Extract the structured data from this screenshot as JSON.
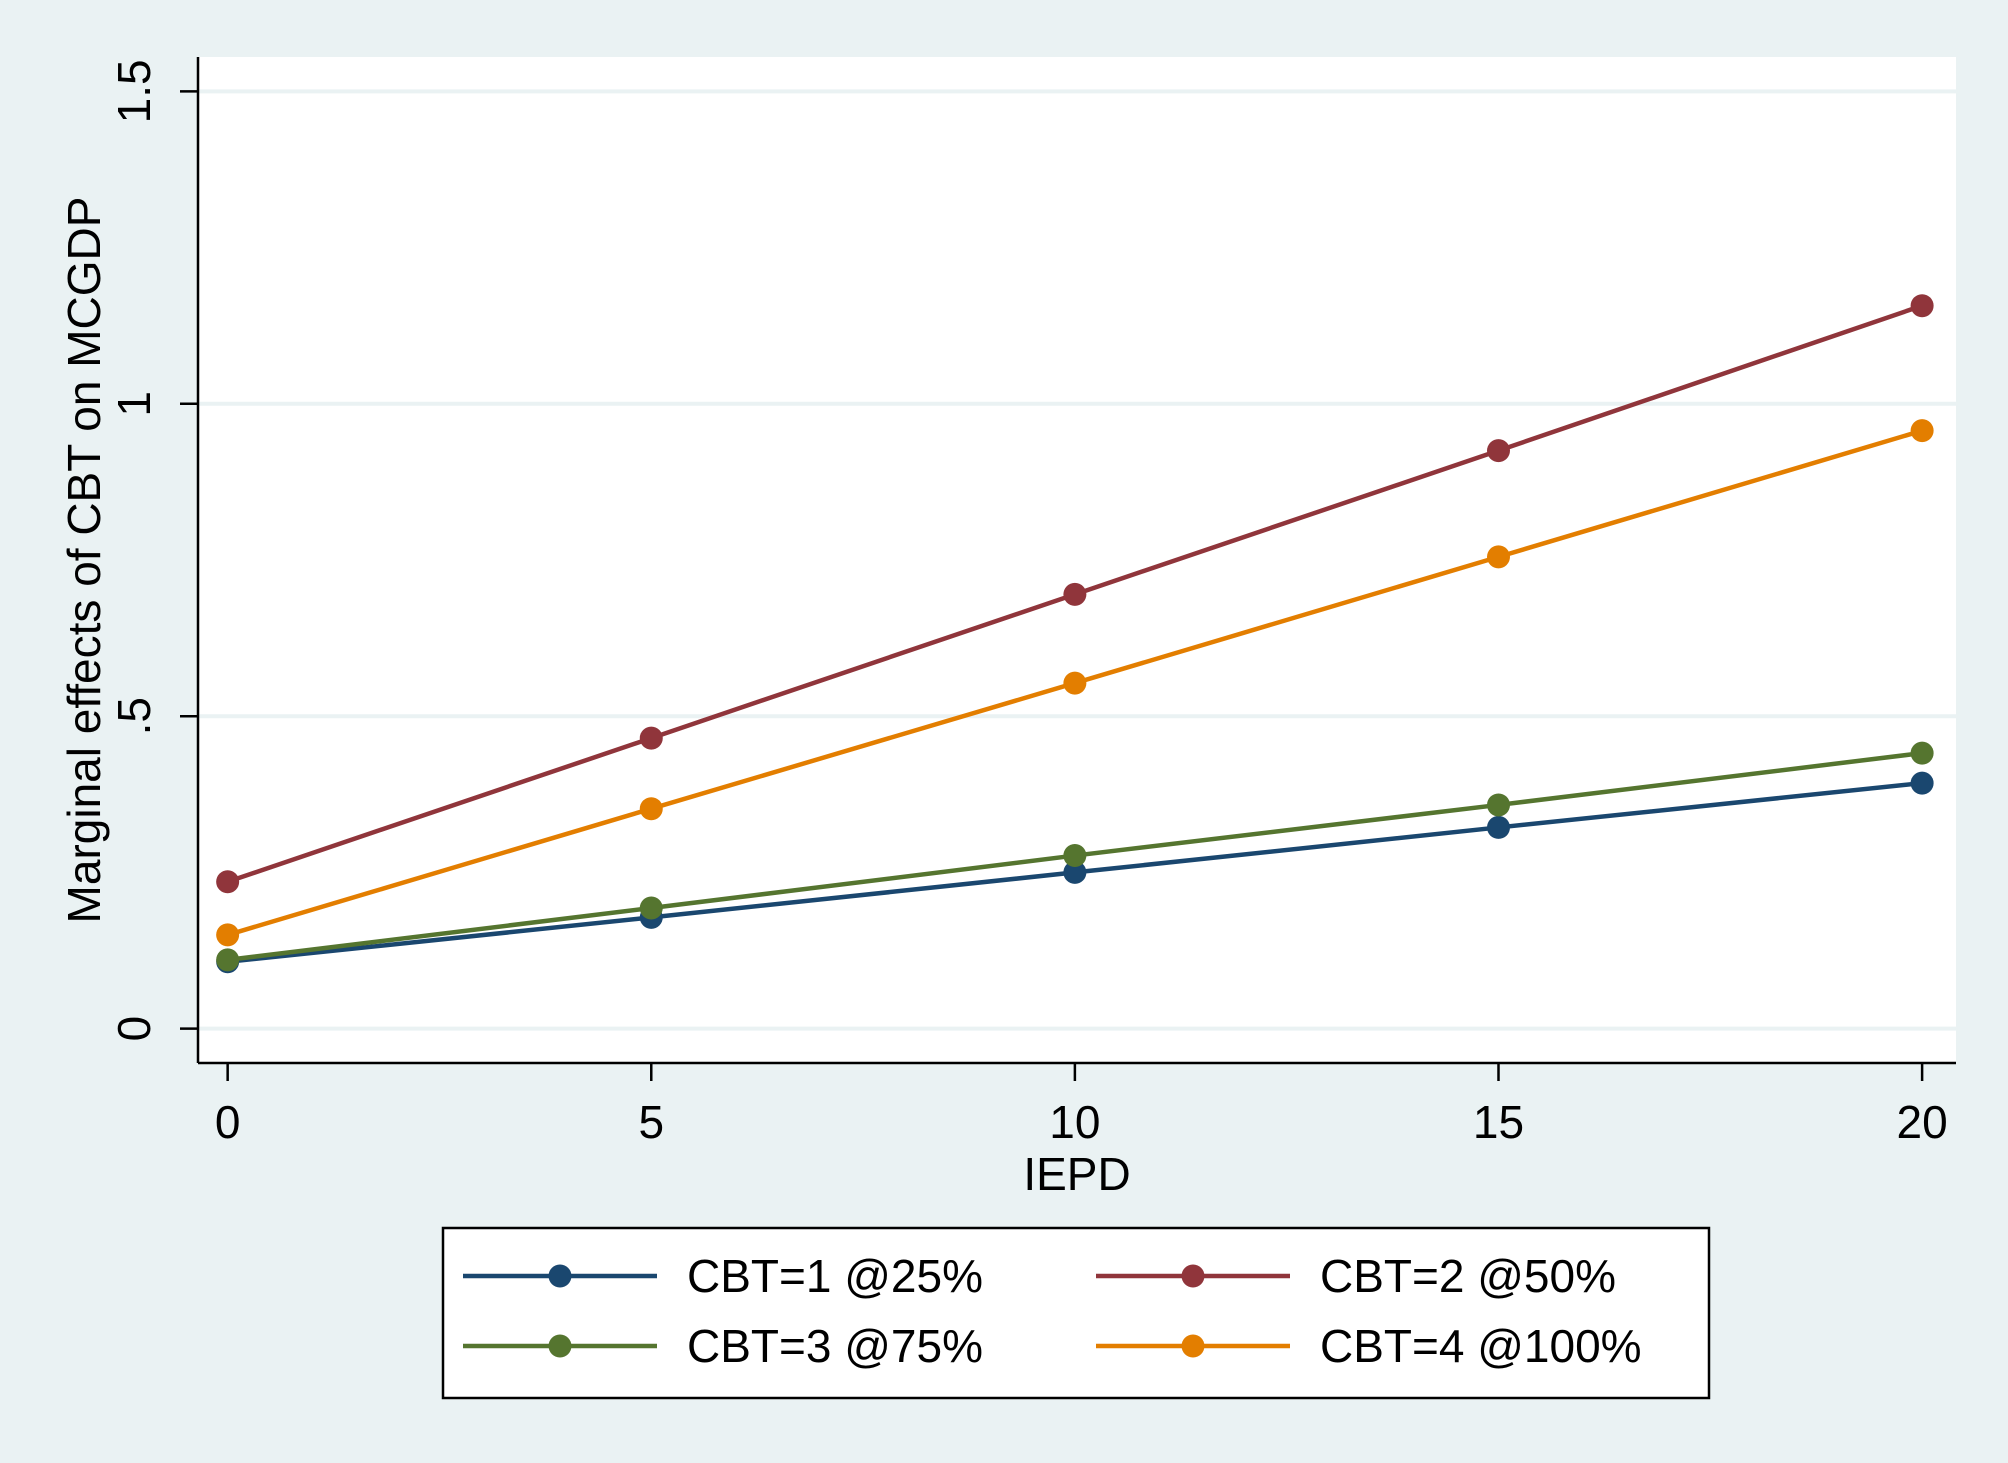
{
  "chart_data": {
    "type": "line",
    "title": "",
    "xlabel": "IEPD",
    "ylabel": "Marginal effects of CBT on MCGDP",
    "x": [
      0,
      5,
      10,
      15,
      20
    ],
    "x_ticks": [
      "0",
      "5",
      "10",
      "15",
      "20"
    ],
    "y_ticks": [
      {
        "value": 0,
        "label": "0"
      },
      {
        "value": 0.5,
        "label": ".5"
      },
      {
        "value": 1,
        "label": "1"
      },
      {
        "value": 1.5,
        "label": "1.5"
      }
    ],
    "xlim": [
      -0.35,
      20.4
    ],
    "ylim": [
      -0.055,
      1.555
    ],
    "grid": true,
    "legend_position": "bottom",
    "series": [
      {
        "name": "CBT=1 @25%",
        "color": "#1a476f",
        "values": [
          0.107,
          0.178,
          0.25,
          0.322,
          0.393
        ]
      },
      {
        "name": "CBT=2 @50%",
        "color": "#90353b",
        "values": [
          0.235,
          0.465,
          0.695,
          0.925,
          1.157
        ]
      },
      {
        "name": "CBT=3 @75%",
        "color": "#55752f",
        "values": [
          0.11,
          0.193,
          0.277,
          0.358,
          0.441
        ]
      },
      {
        "name": "CBT=4 @100%",
        "color": "#e37e00",
        "values": [
          0.15,
          0.352,
          0.553,
          0.755,
          0.957
        ]
      }
    ]
  }
}
